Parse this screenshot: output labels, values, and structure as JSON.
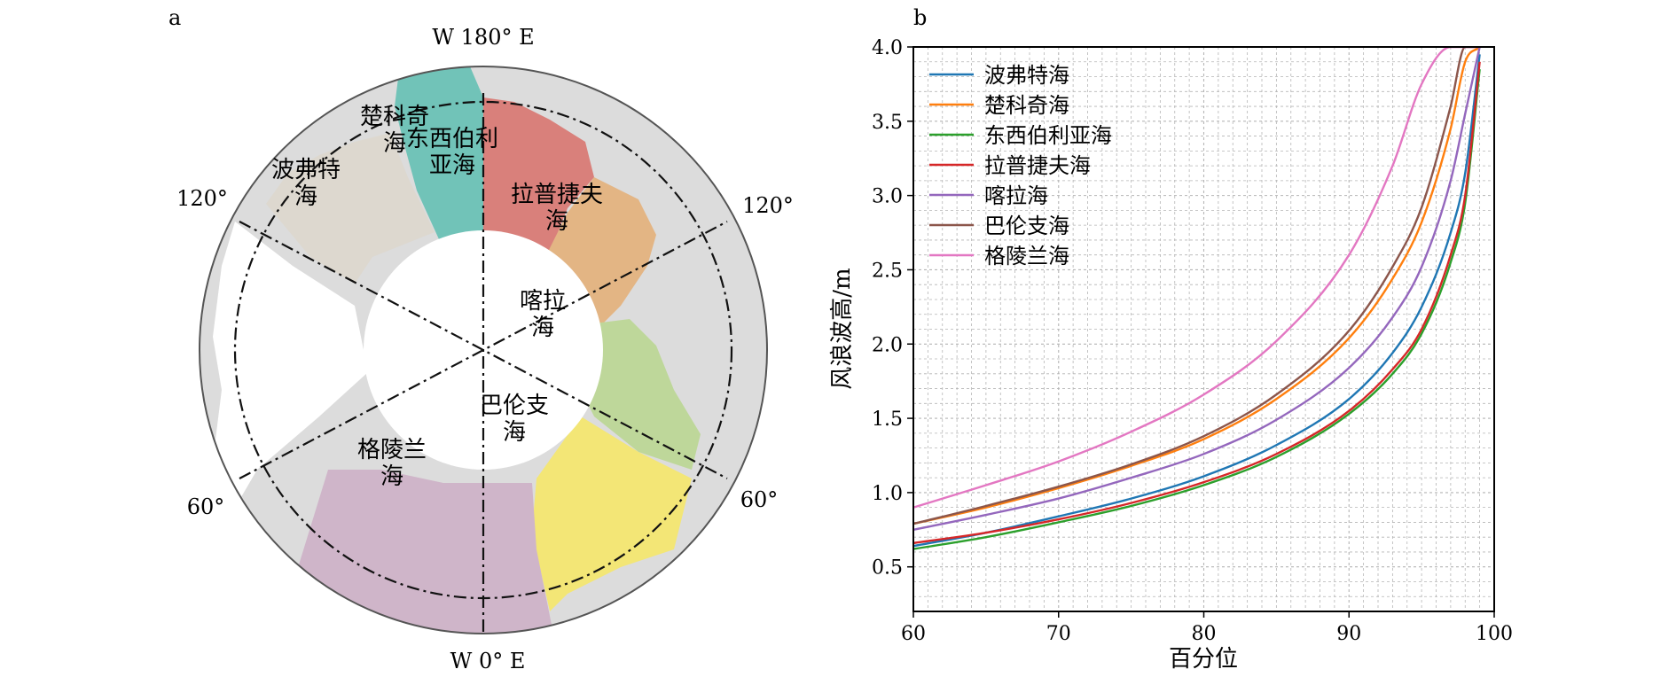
{
  "panels": {
    "a": "a",
    "b": "b"
  },
  "map": {
    "orientation_top": "W 180° E",
    "orientation_bottom": "W 0° E",
    "degree_left_top": "120°",
    "degree_right_top": "120°",
    "degree_left_bottom": "60°",
    "degree_right_bottom": "60°",
    "seas": [
      {
        "key": "beaufort",
        "lines": [
          "波弗特",
          "海"
        ],
        "color": "#ddd8cf"
      },
      {
        "key": "chukchi",
        "lines": [
          "楚科奇",
          "海"
        ],
        "color": "#71c3b8"
      },
      {
        "key": "east_siberian",
        "lines": [
          "东西伯利",
          "亚海"
        ],
        "color": "#d9807b"
      },
      {
        "key": "laptev",
        "lines": [
          "拉普捷夫",
          "海"
        ],
        "color": "#e3b584"
      },
      {
        "key": "kara",
        "lines": [
          "喀拉",
          "海"
        ],
        "color": "#bed79a"
      },
      {
        "key": "barents",
        "lines": [
          "巴伦支",
          "海"
        ],
        "color": "#f3e676"
      },
      {
        "key": "greenland",
        "lines": [
          "格陵兰",
          "海"
        ],
        "color": "#cfb5c9"
      }
    ],
    "land_color": "#dcdcdc",
    "ocean_color": "#ffffff"
  },
  "chart_data": {
    "type": "line",
    "title": "",
    "xlabel": "百分位",
    "ylabel": "风浪波高/m",
    "xlim": [
      60,
      100
    ],
    "ylim": [
      0.2,
      4.0
    ],
    "xticks": [
      60,
      70,
      80,
      90,
      100
    ],
    "yticks": [
      0.5,
      1.0,
      1.5,
      2.0,
      2.5,
      3.0,
      3.5,
      4.0
    ],
    "grid": true,
    "legend": "top-left",
    "x": [
      60,
      65,
      70,
      75,
      80,
      85,
      90,
      93,
      95,
      97,
      98,
      99
    ],
    "series": [
      {
        "name": "波弗特海",
        "color": "#1f77b4",
        "values": [
          0.64,
          0.73,
          0.84,
          0.96,
          1.11,
          1.32,
          1.63,
          1.94,
          2.25,
          2.75,
          3.15,
          3.95
        ]
      },
      {
        "name": "楚科奇海",
        "color": "#ff7f0e",
        "values": [
          0.79,
          0.9,
          1.03,
          1.18,
          1.36,
          1.63,
          2.04,
          2.44,
          2.82,
          3.45,
          3.9,
          4.0
        ]
      },
      {
        "name": "东西伯利亚海",
        "color": "#2ca02c",
        "values": [
          0.62,
          0.7,
          0.8,
          0.91,
          1.05,
          1.24,
          1.53,
          1.8,
          2.07,
          2.55,
          2.95,
          3.85
        ]
      },
      {
        "name": "拉普捷夫海",
        "color": "#d62728",
        "values": [
          0.66,
          0.73,
          0.82,
          0.93,
          1.07,
          1.26,
          1.55,
          1.83,
          2.1,
          2.6,
          3.0,
          3.9
        ]
      },
      {
        "name": "喀拉海",
        "color": "#9467bd",
        "values": [
          0.75,
          0.85,
          0.96,
          1.1,
          1.26,
          1.49,
          1.84,
          2.18,
          2.52,
          3.1,
          3.55,
          4.0
        ]
      },
      {
        "name": "巴伦支海",
        "color": "#8c564b",
        "values": [
          0.79,
          0.91,
          1.04,
          1.19,
          1.38,
          1.66,
          2.09,
          2.52,
          2.92,
          3.6,
          4.0,
          4.0
        ]
      },
      {
        "name": "格陵兰海",
        "color": "#e377c2",
        "values": [
          0.9,
          1.05,
          1.21,
          1.41,
          1.66,
          2.02,
          2.6,
          3.2,
          3.75,
          4.0,
          4.0,
          4.0
        ]
      }
    ]
  }
}
